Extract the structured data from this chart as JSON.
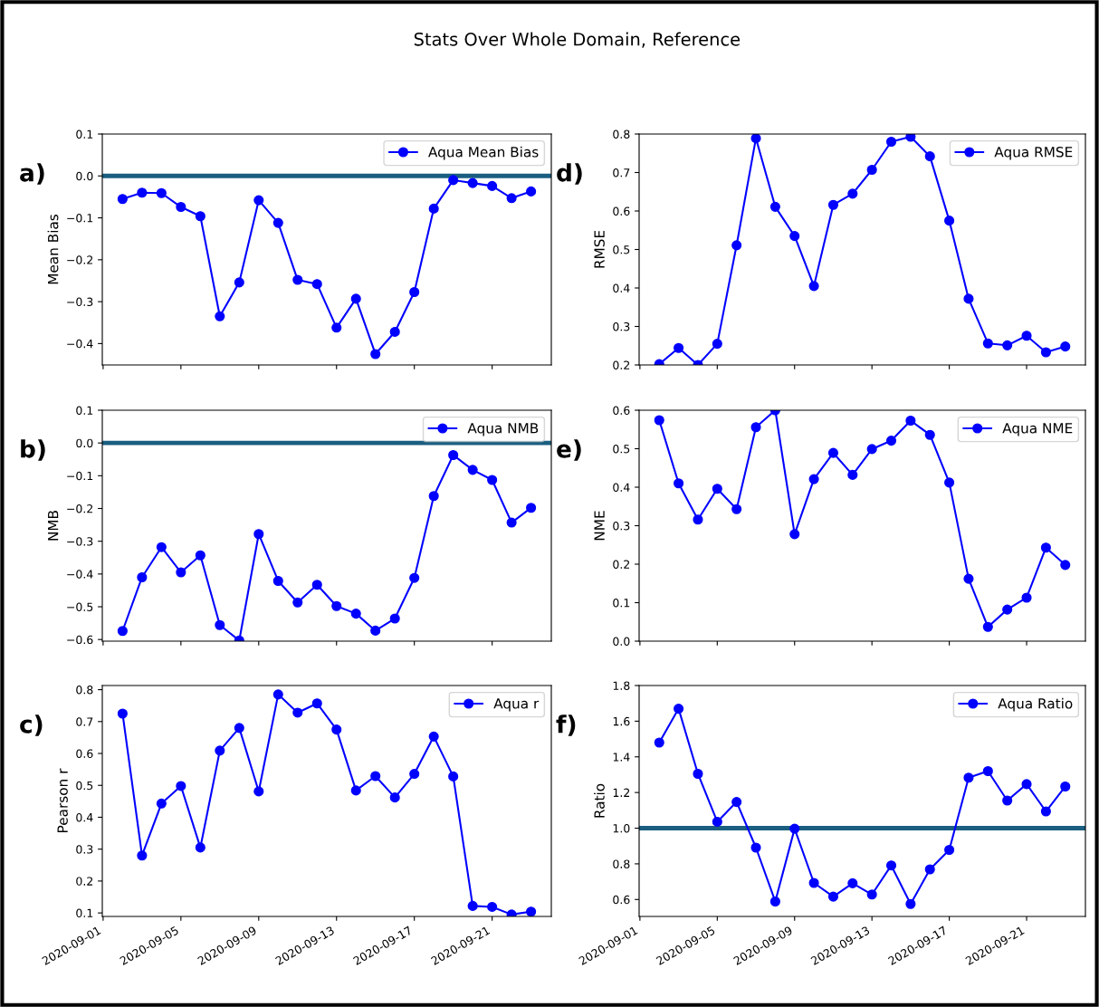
{
  "chart_data": [
    {
      "type": "line",
      "title": "Stats Over Whole Domain, Reference",
      "ylabel": "Mean Bias",
      "annotations": [
        "a)"
      ],
      "x": [
        "2020-09-02",
        "2020-09-03",
        "2020-09-04",
        "2020-09-05",
        "2020-09-06",
        "2020-09-07",
        "2020-09-08",
        "2020-09-09",
        "2020-09-10",
        "2020-09-11",
        "2020-09-12",
        "2020-09-13",
        "2020-09-14",
        "2020-09-15",
        "2020-09-16",
        "2020-09-17",
        "2020-09-18",
        "2020-09-19",
        "2020-09-20",
        "2020-09-21",
        "2020-09-22",
        "2020-09-23"
      ],
      "series": [
        {
          "name": "Aqua Mean Bias",
          "color": "#0000ff",
          "values": [
            -0.055,
            -0.04,
            -0.041,
            -0.074,
            -0.096,
            -0.335,
            -0.254,
            -0.058,
            -0.112,
            -0.248,
            -0.258,
            -0.362,
            -0.293,
            -0.425,
            -0.372,
            -0.277,
            -0.078,
            -0.01,
            -0.017,
            -0.024,
            -0.053,
            -0.037
          ]
        }
      ],
      "xlim": [
        "2020-08-31T23:00",
        "2020-09-24T01:00"
      ],
      "xticks": [
        "2020-09-01",
        "2020-09-05",
        "2020-09-09",
        "2020-09-13",
        "2020-09-17",
        "2020-09-21"
      ],
      "ylim": [
        -0.451,
        0.1
      ],
      "yticks": [
        {
          "value": -0.4,
          "label": "−0.4"
        },
        {
          "value": -0.3,
          "label": "−0.3"
        },
        {
          "value": -0.2,
          "label": "−0.2"
        },
        {
          "value": -0.1,
          "label": "−0.1"
        },
        {
          "value": 0.0,
          "label": "0.0"
        },
        0.1
      ],
      "ref_lines": [
        {
          "axis": "y",
          "value": 0,
          "color": "#1a5e80"
        }
      ],
      "tick_labels": "y",
      "legend": "top right",
      "marker": "circle",
      "line_style": "solid",
      "grid": false
    },
    {
      "type": "line",
      "ylabel": "RMSE",
      "annotations": [
        "d)"
      ],
      "x": [
        "2020-09-02",
        "2020-09-03",
        "2020-09-04",
        "2020-09-05",
        "2020-09-06",
        "2020-09-07",
        "2020-09-08",
        "2020-09-09",
        "2020-09-10",
        "2020-09-11",
        "2020-09-12",
        "2020-09-13",
        "2020-09-14",
        "2020-09-15",
        "2020-09-16",
        "2020-09-17",
        "2020-09-18",
        "2020-09-19",
        "2020-09-20",
        "2020-09-21",
        "2020-09-22",
        "2020-09-23"
      ],
      "series": [
        {
          "name": "Aqua RMSE",
          "color": "#0000ff",
          "values": [
            0.202,
            0.244,
            0.2,
            0.255,
            0.511,
            0.789,
            0.611,
            0.535,
            0.405,
            0.616,
            0.645,
            0.707,
            0.78,
            0.793,
            0.742,
            0.575,
            0.372,
            0.256,
            0.251,
            0.276,
            0.233,
            0.248
          ]
        }
      ],
      "xlim": [
        "2020-08-31T23:00",
        "2020-09-24T01:00"
      ],
      "xticks": [
        "2020-09-01",
        "2020-09-05",
        "2020-09-09",
        "2020-09-13",
        "2020-09-17",
        "2020-09-21"
      ],
      "ylim": [
        0.2,
        0.8
      ],
      "yticks": [
        0.2,
        0.3,
        0.4,
        0.5,
        0.6,
        0.7,
        0.8
      ],
      "tick_labels": "y",
      "legend": "top right",
      "marker": "circle",
      "line_style": "solid",
      "grid": false
    },
    {
      "type": "line",
      "ylabel": "NMB",
      "annotations": [
        "b)"
      ],
      "x": [
        "2020-09-02",
        "2020-09-03",
        "2020-09-04",
        "2020-09-05",
        "2020-09-06",
        "2020-09-07",
        "2020-09-08",
        "2020-09-09",
        "2020-09-10",
        "2020-09-11",
        "2020-09-12",
        "2020-09-13",
        "2020-09-14",
        "2020-09-15",
        "2020-09-16",
        "2020-09-17",
        "2020-09-18",
        "2020-09-19",
        "2020-09-20",
        "2020-09-21",
        "2020-09-22",
        "2020-09-23"
      ],
      "series": [
        {
          "name": "Aqua NMB",
          "color": "#0000ff",
          "values": [
            -0.574,
            -0.41,
            -0.318,
            -0.395,
            -0.343,
            -0.556,
            -0.603,
            -0.278,
            -0.421,
            -0.487,
            -0.433,
            -0.498,
            -0.521,
            -0.573,
            -0.536,
            -0.412,
            -0.162,
            -0.037,
            -0.082,
            -0.113,
            -0.243,
            -0.198
          ]
        }
      ],
      "xlim": [
        "2020-08-31T23:00",
        "2020-09-24T01:00"
      ],
      "xticks": [
        "2020-09-01",
        "2020-09-05",
        "2020-09-09",
        "2020-09-13",
        "2020-09-17",
        "2020-09-21"
      ],
      "ylim": [
        -0.605,
        0.1
      ],
      "yticks": [
        {
          "value": -0.6,
          "label": "−0.6"
        },
        {
          "value": -0.5,
          "label": "−0.5"
        },
        {
          "value": -0.4,
          "label": "−0.4"
        },
        {
          "value": -0.3,
          "label": "−0.3"
        },
        {
          "value": -0.2,
          "label": "−0.2"
        },
        {
          "value": -0.1,
          "label": "−0.1"
        },
        {
          "value": 0.0,
          "label": "0.0"
        },
        0.1
      ],
      "ref_lines": [
        {
          "axis": "y",
          "value": 0,
          "color": "#1a5e80"
        }
      ],
      "tick_labels": "y",
      "legend": "top right",
      "marker": "circle",
      "line_style": "solid",
      "grid": false
    },
    {
      "type": "line",
      "ylabel": "NME",
      "annotations": [
        "e)"
      ],
      "x": [
        "2020-09-02",
        "2020-09-03",
        "2020-09-04",
        "2020-09-05",
        "2020-09-06",
        "2020-09-07",
        "2020-09-08",
        "2020-09-09",
        "2020-09-10",
        "2020-09-11",
        "2020-09-12",
        "2020-09-13",
        "2020-09-14",
        "2020-09-15",
        "2020-09-16",
        "2020-09-17",
        "2020-09-18",
        "2020-09-19",
        "2020-09-20",
        "2020-09-21",
        "2020-09-22",
        "2020-09-23"
      ],
      "series": [
        {
          "name": "Aqua NME",
          "color": "#0000ff",
          "values": [
            0.574,
            0.41,
            0.316,
            0.396,
            0.343,
            0.556,
            0.6,
            0.278,
            0.421,
            0.489,
            0.432,
            0.499,
            0.521,
            0.573,
            0.536,
            0.412,
            0.162,
            0.037,
            0.082,
            0.113,
            0.243,
            0.198
          ]
        }
      ],
      "xlim": [
        "2020-08-31T23:00",
        "2020-09-24T01:00"
      ],
      "xticks": [
        "2020-09-01",
        "2020-09-05",
        "2020-09-09",
        "2020-09-13",
        "2020-09-17",
        "2020-09-21"
      ],
      "ylim": [
        0.0,
        0.6
      ],
      "yticks": [
        {
          "value": 0.0,
          "label": "0.0"
        },
        0.1,
        0.2,
        0.3,
        0.4,
        0.5,
        0.6
      ],
      "tick_labels": "y",
      "legend": "top right",
      "marker": "circle",
      "line_style": "solid",
      "grid": false
    },
    {
      "type": "line",
      "ylabel": "Pearson r",
      "annotations": [
        "c)"
      ],
      "x": [
        "2020-09-02",
        "2020-09-03",
        "2020-09-04",
        "2020-09-05",
        "2020-09-06",
        "2020-09-07",
        "2020-09-08",
        "2020-09-09",
        "2020-09-10",
        "2020-09-11",
        "2020-09-12",
        "2020-09-13",
        "2020-09-14",
        "2020-09-15",
        "2020-09-16",
        "2020-09-17",
        "2020-09-18",
        "2020-09-19",
        "2020-09-20",
        "2020-09-21",
        "2020-09-22",
        "2020-09-23"
      ],
      "series": [
        {
          "name": "Aqua r",
          "color": "#0000ff",
          "values": [
            0.725,
            0.28,
            0.443,
            0.498,
            0.305,
            0.609,
            0.68,
            0.481,
            0.785,
            0.728,
            0.757,
            0.675,
            0.484,
            0.529,
            0.462,
            0.536,
            0.653,
            0.528,
            0.122,
            0.119,
            0.095,
            0.104
          ]
        }
      ],
      "xlim": [
        "2020-08-31T23:00",
        "2020-09-24T01:00"
      ],
      "xticks": [
        "2020-09-01",
        "2020-09-05",
        "2020-09-09",
        "2020-09-13",
        "2020-09-17",
        "2020-09-21"
      ],
      "ylim": [
        0.089,
        0.813
      ],
      "yticks": [
        0.1,
        0.2,
        0.3,
        0.4,
        0.5,
        0.6,
        0.7,
        0.8
      ],
      "legend": "top right",
      "marker": "circle",
      "line_style": "solid",
      "grid": false
    },
    {
      "type": "line",
      "ylabel": "Ratio",
      "annotations": [
        "f)"
      ],
      "x": [
        "2020-09-02",
        "2020-09-03",
        "2020-09-04",
        "2020-09-05",
        "2020-09-06",
        "2020-09-07",
        "2020-09-08",
        "2020-09-09",
        "2020-09-10",
        "2020-09-11",
        "2020-09-12",
        "2020-09-13",
        "2020-09-14",
        "2020-09-15",
        "2020-09-16",
        "2020-09-17",
        "2020-09-18",
        "2020-09-19",
        "2020-09-20",
        "2020-09-21",
        "2020-09-22",
        "2020-09-23"
      ],
      "series": [
        {
          "name": "Aqua Ratio",
          "color": "#0000ff",
          "values": [
            1.48,
            1.67,
            1.305,
            1.036,
            1.147,
            0.891,
            0.589,
            0.997,
            0.693,
            0.616,
            0.691,
            0.628,
            0.791,
            0.575,
            0.769,
            0.878,
            1.283,
            1.32,
            1.155,
            1.247,
            1.094,
            1.234
          ]
        }
      ],
      "xlim": [
        "2020-08-31T23:00",
        "2020-09-24T01:00"
      ],
      "xticks": [
        "2020-09-01",
        "2020-09-05",
        "2020-09-09",
        "2020-09-13",
        "2020-09-17",
        "2020-09-21"
      ],
      "ylim": [
        0.505,
        1.8
      ],
      "yticks": [
        0.6,
        0.8,
        {
          "value": 1.0,
          "label": "1.0"
        },
        1.2,
        1.4,
        1.6,
        1.8
      ],
      "ref_lines": [
        {
          "axis": "y",
          "value": 1.0,
          "color": "#1a5e80"
        }
      ],
      "legend": "top right",
      "marker": "circle",
      "line_style": "solid",
      "grid": false
    }
  ]
}
